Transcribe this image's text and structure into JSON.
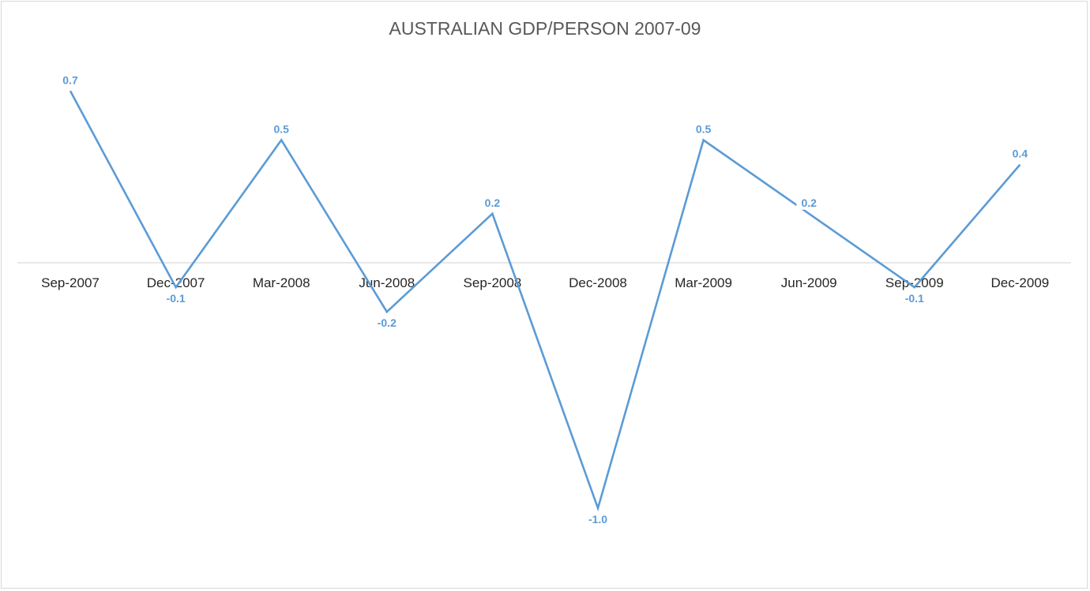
{
  "chart_data": {
    "type": "line",
    "title": "AUSTRALIAN GDP/PERSON 2007-09",
    "categories": [
      "Sep-2007",
      "Dec-2007",
      "Mar-2008",
      "Jun-2008",
      "Sep-2008",
      "Dec-2008",
      "Mar-2009",
      "Jun-2009",
      "Sep-2009",
      "Dec-2009"
    ],
    "series": [
      {
        "values": [
          0.7,
          -0.1,
          0.5,
          -0.2,
          0.2,
          -1.0,
          0.5,
          0.2,
          -0.1,
          0.4
        ],
        "labels": [
          "0.7",
          "-0.1",
          "0.5",
          "-0.2",
          "0.2",
          "-1.0",
          "0.5",
          "0.2",
          "-0.1",
          "0.4"
        ]
      }
    ],
    "xlabel": "",
    "ylabel": "",
    "ylim": [
      -1.0,
      0.7
    ],
    "grid": false,
    "legend": "none",
    "colors": {
      "line": "#5b9bd5",
      "axis": "#d9d9d9",
      "title": "#595959",
      "tick_text": "#262626"
    }
  }
}
